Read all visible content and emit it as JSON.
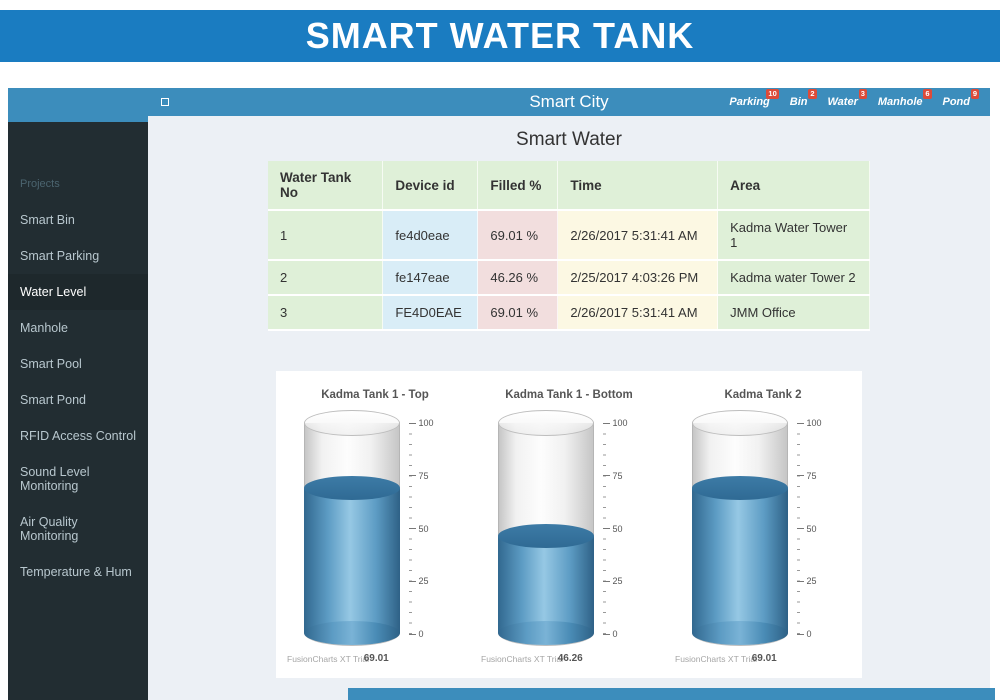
{
  "banner": {
    "title": "SMART WATER TANK"
  },
  "navbar": {
    "title": "Smart City",
    "items": [
      {
        "label": "Parking",
        "badge": "10"
      },
      {
        "label": "Bin",
        "badge": "2"
      },
      {
        "label": "Water",
        "badge": "3"
      },
      {
        "label": "Manhole",
        "badge": "6"
      },
      {
        "label": "Pond",
        "badge": "9"
      }
    ]
  },
  "sidebar": {
    "section_label": "Projects",
    "active_item": "Water Level",
    "items": [
      {
        "label": "Smart Bin"
      },
      {
        "label": "Smart Parking"
      },
      {
        "label": "Water Level"
      },
      {
        "label": "Manhole"
      },
      {
        "label": "Smart Pool"
      },
      {
        "label": "Smart Pond"
      },
      {
        "label": "RFID Access Control"
      },
      {
        "label": "Sound Level Monitoring"
      },
      {
        "label": "Air Quality Monitoring"
      },
      {
        "label": "Temperature & Hum"
      }
    ]
  },
  "main": {
    "title": "Smart Water",
    "table": {
      "headers": [
        "Water Tank No",
        "Device id",
        "Filled %",
        "Time",
        "Area"
      ],
      "rows": [
        [
          "1",
          "fe4d0eae",
          "69.01 %",
          "2/26/2017 5:31:41 AM",
          "Kadma Water Tower 1"
        ],
        [
          "2",
          "fe147eae",
          "46.26 %",
          "2/25/2017 4:03:26 PM",
          "Kadma water Tower 2"
        ],
        [
          "3",
          "FE4D0EAE",
          "69.01 %",
          "2/26/2017 5:31:41 AM",
          "JMM Office"
        ]
      ]
    }
  },
  "chart_data": [
    {
      "type": "cylinder",
      "title": "Kadma Tank 1 - Top",
      "value": 69.01,
      "min": 0,
      "max": 100,
      "ticks": [
        0,
        25,
        50,
        75,
        100
      ],
      "watermark": "FusionCharts XT Trial",
      "fill_color": "#5d9cc4"
    },
    {
      "type": "cylinder",
      "title": "Kadma Tank 1 - Bottom",
      "value": 46.26,
      "min": 0,
      "max": 100,
      "ticks": [
        0,
        25,
        50,
        75,
        100
      ],
      "watermark": "FusionCharts XT Trial",
      "fill_color": "#5d9cc4"
    },
    {
      "type": "cylinder",
      "title": "Kadma Tank 2",
      "value": 69.01,
      "min": 0,
      "max": 100,
      "ticks": [
        0,
        25,
        50,
        75,
        100
      ],
      "watermark": "FusionCharts XT Trial",
      "fill_color": "#5d9cc4"
    }
  ],
  "colors": {
    "banner_blue": "#1a7cc1",
    "navbar_blue": "#3c8dbc",
    "sidebar_dark": "#222d32",
    "sidebar_active": "#1e282c",
    "badge_red": "#dd4b39",
    "table_green": "#dff0d8",
    "table_blue": "#d9edf7",
    "table_pink": "#f2dede",
    "table_yellow": "#fcf8e3",
    "water_blue": "#5d9cc4"
  }
}
